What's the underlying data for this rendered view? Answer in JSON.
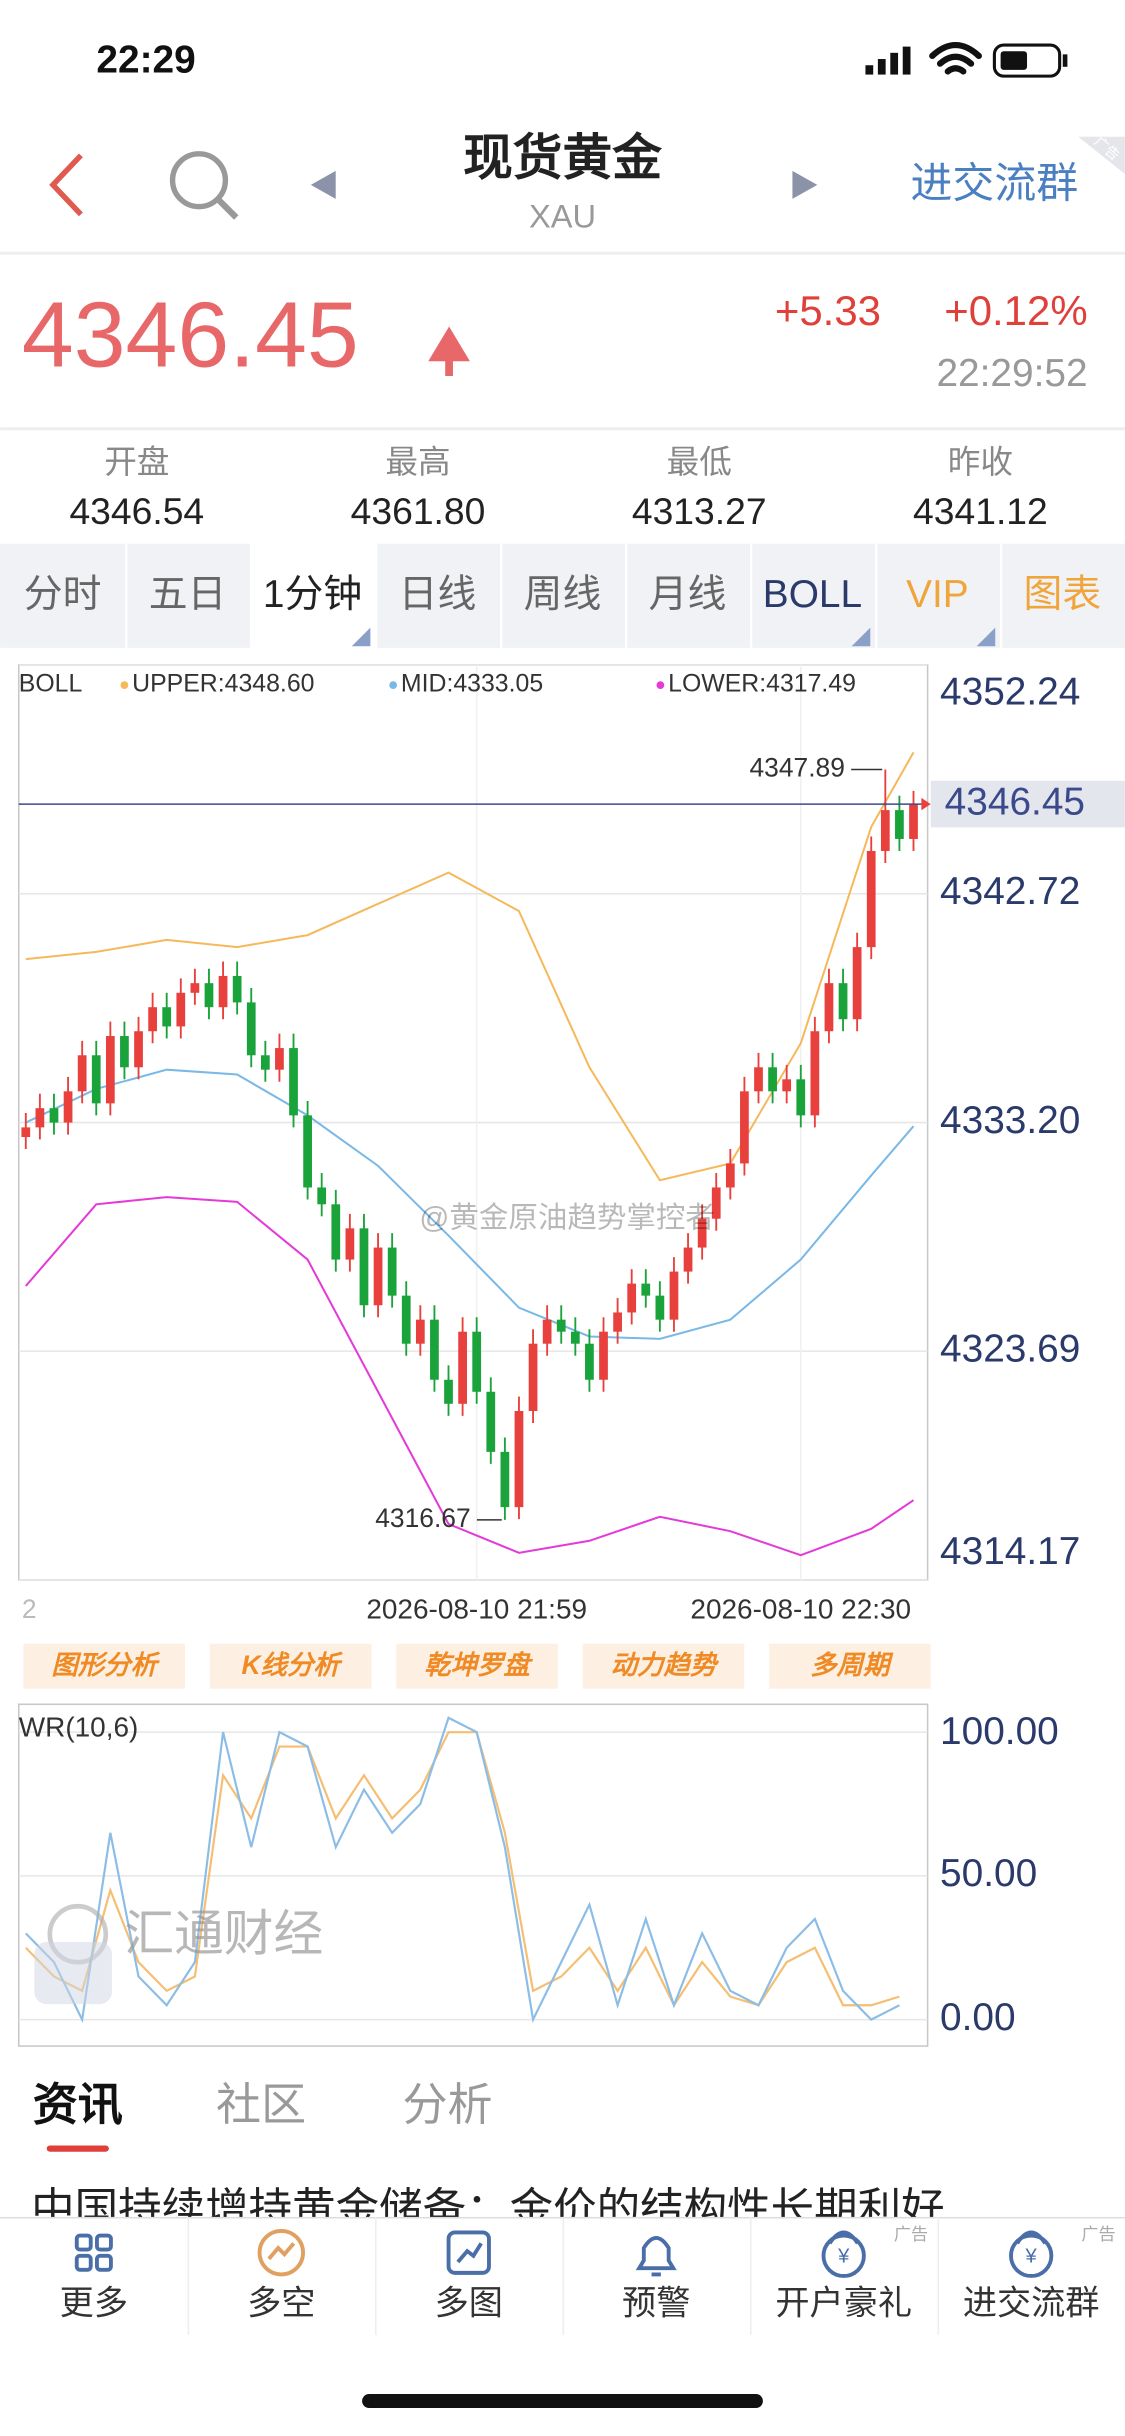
{
  "status_bar": {
    "time": "22:29"
  },
  "header": {
    "title": "现货黄金",
    "symbol": "XAU",
    "group_link": "进交流群",
    "ad_tag": "广告"
  },
  "quote": {
    "price": "4346.45",
    "change": "+5.33",
    "change_pct": "+0.12%",
    "time": "22:29:52"
  },
  "stats": [
    {
      "label": "开盘",
      "value": "4346.54"
    },
    {
      "label": "最高",
      "value": "4361.80"
    },
    {
      "label": "最低",
      "value": "4313.27"
    },
    {
      "label": "昨收",
      "value": "4341.12"
    }
  ],
  "tabs": [
    {
      "label": "分时",
      "color": "#666666"
    },
    {
      "label": "五日",
      "color": "#666666"
    },
    {
      "label": "1分钟",
      "color": "#222222"
    },
    {
      "label": "日线",
      "color": "#666666"
    },
    {
      "label": "周线",
      "color": "#666666"
    },
    {
      "label": "月线",
      "color": "#666666"
    },
    {
      "label": "BOLL",
      "color": "#2a3a6a"
    },
    {
      "label": "VIP",
      "color": "#f0a53a"
    },
    {
      "label": "图表",
      "color": "#f0a53a"
    }
  ],
  "selected_tab": 2,
  "chart_data": [
    {
      "type": "candlestick",
      "indicator": "BOLL",
      "up_color": "#e8403c",
      "down_color": "#1aa33a",
      "current_price": 4346.45,
      "current_color": "#3a4a8a",
      "xlim": [
        -0.5,
        64
      ],
      "ylim": [
        4314.17,
        4352.24
      ],
      "yticks": [
        4352.24,
        4342.72,
        {
          "value": 4333.2,
          "label": "4333.20"
        },
        4323.69,
        4314.17
      ],
      "xticks": [
        {
          "value": 32,
          "label": "2026-08-10 21:59"
        },
        {
          "value": 55,
          "label": "2026-08-10 22:30"
        }
      ],
      "grid": true,
      "series": [
        {
          "name": "UPPER",
          "label": "UPPER:4348.60",
          "color": "#f5b95c",
          "x": [
            0,
            5,
            10,
            15,
            20,
            25,
            30,
            35,
            40,
            45,
            50,
            55,
            60,
            63
          ],
          "values": [
            4340.0,
            4340.3,
            4340.8,
            4340.5,
            4341.0,
            4342.3,
            4343.6,
            4342.0,
            4335.5,
            4330.8,
            4331.5,
            4336.5,
            4345.5,
            4348.6
          ]
        },
        {
          "name": "MID",
          "label": "MID:4333.05",
          "color": "#7ab8e6",
          "x": [
            0,
            5,
            10,
            15,
            20,
            25,
            30,
            35,
            40,
            45,
            50,
            55,
            60,
            63
          ],
          "values": [
            4333.2,
            4334.6,
            4335.4,
            4335.2,
            4333.5,
            4331.4,
            4328.5,
            4325.5,
            4324.3,
            4324.2,
            4325.0,
            4327.5,
            4331.0,
            4333.05
          ]
        },
        {
          "name": "LOWER",
          "label": "LOWER:4317.49",
          "color": "#e43ad8",
          "x": [
            0,
            5,
            10,
            15,
            20,
            25,
            30,
            35,
            40,
            45,
            50,
            55,
            60,
            63
          ],
          "values": [
            4326.4,
            4329.8,
            4330.1,
            4329.9,
            4327.5,
            4322.0,
            4316.5,
            4315.3,
            4315.8,
            4316.8,
            4316.2,
            4315.2,
            4316.3,
            4317.49
          ]
        }
      ],
      "candles": [
        [
          4332.6,
          4333.6,
          4332.1,
          4333.0
        ],
        [
          4333.0,
          4334.4,
          4332.5,
          4333.8
        ],
        [
          4333.8,
          4334.4,
          4332.7,
          4333.2
        ],
        [
          4333.2,
          4335.1,
          4332.7,
          4334.5
        ],
        [
          4334.5,
          4336.6,
          4334.0,
          4336.0
        ],
        [
          4336.0,
          4336.6,
          4333.5,
          4334.0
        ],
        [
          4334.0,
          4337.4,
          4333.5,
          4336.8
        ],
        [
          4336.8,
          4337.4,
          4335.0,
          4335.5
        ],
        [
          4335.5,
          4337.6,
          4335.0,
          4337.0
        ],
        [
          4337.0,
          4338.6,
          4336.5,
          4338.0
        ],
        [
          4338.0,
          4338.6,
          4336.7,
          4337.2
        ],
        [
          4337.2,
          4339.2,
          4336.7,
          4338.6
        ],
        [
          4338.6,
          4339.6,
          4338.1,
          4339.0
        ],
        [
          4339.0,
          4339.6,
          4337.5,
          4338.0
        ],
        [
          4338.0,
          4339.9,
          4337.5,
          4339.3
        ],
        [
          4339.3,
          4339.9,
          4337.7,
          4338.2
        ],
        [
          4338.2,
          4338.8,
          4335.5,
          4336.0
        ],
        [
          4336.0,
          4336.6,
          4334.9,
          4335.4
        ],
        [
          4335.4,
          4336.9,
          4334.9,
          4336.3
        ],
        [
          4336.3,
          4336.9,
          4333.0,
          4333.5
        ],
        [
          4333.5,
          4334.1,
          4330.0,
          4330.5
        ],
        [
          4330.5,
          4331.1,
          4329.3,
          4329.8
        ],
        [
          4329.8,
          4330.4,
          4327.0,
          4327.5
        ],
        [
          4327.5,
          4329.4,
          4327.0,
          4328.8
        ],
        [
          4328.8,
          4329.4,
          4325.1,
          4325.6
        ],
        [
          4325.6,
          4328.6,
          4325.1,
          4328.0
        ],
        [
          4328.0,
          4328.6,
          4325.5,
          4326.0
        ],
        [
          4326.0,
          4326.6,
          4323.5,
          4324.0
        ],
        [
          4324.0,
          4325.6,
          4323.5,
          4325.0
        ],
        [
          4325.0,
          4325.6,
          4322.0,
          4322.5
        ],
        [
          4322.5,
          4323.1,
          4321.0,
          4321.5
        ],
        [
          4321.5,
          4325.1,
          4321.0,
          4324.5
        ],
        [
          4324.5,
          4325.1,
          4321.5,
          4322.0
        ],
        [
          4322.0,
          4322.6,
          4319.0,
          4319.5
        ],
        [
          4319.5,
          4320.1,
          4316.67,
          4317.2
        ],
        [
          4317.2,
          4321.8,
          4316.7,
          4321.2
        ],
        [
          4321.2,
          4324.6,
          4320.7,
          4324.0
        ],
        [
          4324.0,
          4325.6,
          4323.5,
          4325.0
        ],
        [
          4325.0,
          4325.6,
          4324.0,
          4324.5
        ],
        [
          4324.5,
          4325.1,
          4323.5,
          4324.0
        ],
        [
          4324.0,
          4324.6,
          4322.0,
          4322.5
        ],
        [
          4322.5,
          4325.1,
          4322.0,
          4324.5
        ],
        [
          4324.5,
          4325.9,
          4324.0,
          4325.3
        ],
        [
          4325.3,
          4327.1,
          4324.8,
          4326.5
        ],
        [
          4326.5,
          4327.1,
          4325.5,
          4326.0
        ],
        [
          4326.0,
          4326.6,
          4324.5,
          4325.0
        ],
        [
          4325.0,
          4327.6,
          4324.5,
          4327.0
        ],
        [
          4327.0,
          4328.6,
          4326.5,
          4328.0
        ],
        [
          4328.0,
          4329.8,
          4327.5,
          4329.2
        ],
        [
          4329.2,
          4331.1,
          4328.7,
          4330.5
        ],
        [
          4330.5,
          4332.1,
          4330.0,
          4331.5
        ],
        [
          4331.5,
          4335.1,
          4331.0,
          4334.5
        ],
        [
          4334.5,
          4336.1,
          4334.0,
          4335.5
        ],
        [
          4335.5,
          4336.1,
          4334.0,
          4334.5
        ],
        [
          4334.5,
          4335.6,
          4334.0,
          4335.0
        ],
        [
          4335.0,
          4335.6,
          4333.0,
          4333.5
        ],
        [
          4333.5,
          4337.6,
          4333.0,
          4337.0
        ],
        [
          4337.0,
          4339.6,
          4336.5,
          4339.0
        ],
        [
          4339.0,
          4339.6,
          4337.0,
          4337.5
        ],
        [
          4337.5,
          4341.1,
          4337.0,
          4340.5
        ],
        [
          4340.5,
          4345.1,
          4340.0,
          4344.5
        ],
        [
          4344.5,
          4347.89,
          4344.0,
          4346.2
        ],
        [
          4346.2,
          4346.8,
          4344.5,
          4345.0
        ],
        [
          4345.0,
          4347.0,
          4344.5,
          4346.45
        ]
      ]
    },
    {
      "type": "line",
      "title": "WR(10,6)",
      "xlim": [
        -0.5,
        64
      ],
      "ylim": [
        -9.2,
        109.7
      ],
      "yticks": [
        {
          "value": 100,
          "label": "100.00"
        },
        {
          "value": 50,
          "label": "50.00"
        },
        {
          "value": 0,
          "label": "0.00"
        }
      ],
      "grid": true,
      "x": [
        0,
        2,
        4,
        6,
        8,
        10,
        12,
        14,
        16,
        18,
        20,
        22,
        24,
        26,
        28,
        30,
        32,
        34,
        36,
        38,
        40,
        42,
        44,
        46,
        48,
        50,
        52,
        54,
        56,
        58,
        60,
        62
      ],
      "series": [
        {
          "color": "#f5be72",
          "values": [
            25,
            15,
            10,
            45,
            20,
            10,
            15,
            85,
            70,
            95,
            95,
            70,
            85,
            70,
            80,
            100,
            100,
            65,
            10,
            15,
            25,
            10,
            25,
            5,
            20,
            8,
            5,
            20,
            25,
            5,
            5,
            8
          ]
        },
        {
          "color": "#8cbde6",
          "values": [
            30,
            20,
            0,
            65,
            15,
            5,
            20,
            100,
            60,
            100,
            95,
            60,
            80,
            65,
            75,
            105,
            100,
            60,
            0,
            20,
            40,
            5,
            35,
            5,
            30,
            10,
            5,
            25,
            35,
            10,
            0,
            5
          ]
        }
      ]
    }
  ],
  "tools": [
    "图形分析",
    "K线分析",
    "乾坤罗盘",
    "动力趋势",
    "多周期"
  ],
  "watermarks": [
    "@黄金原油趋势掌控者",
    "汇通财经"
  ],
  "news": {
    "tabs": [
      "资讯",
      "社区",
      "分析"
    ],
    "headline": "中国持续增持黄金储备：金价的结构性长期利好"
  },
  "nav": [
    {
      "label": "更多"
    },
    {
      "label": "多空"
    },
    {
      "label": "多图"
    },
    {
      "label": "预警"
    },
    {
      "label": "开户豪礼",
      "ad": "广告"
    },
    {
      "label": "进交流群",
      "ad": "广告"
    }
  ]
}
